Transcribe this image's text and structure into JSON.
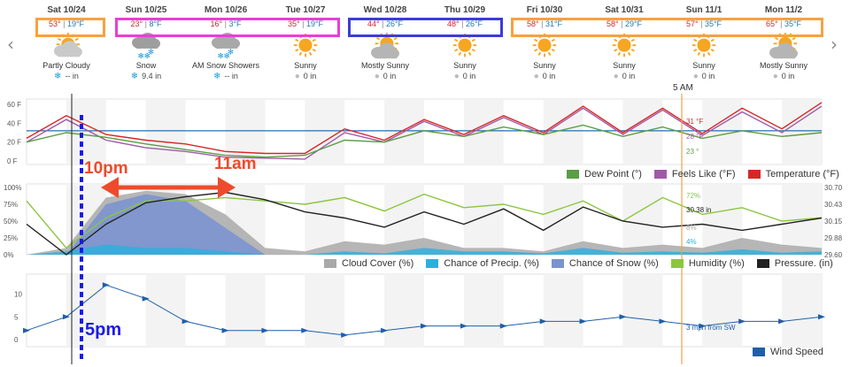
{
  "nav": {
    "prev_icon": "chevron-left-icon",
    "next_icon": "chevron-right-icon",
    "prev_glyph": "‹",
    "next_glyph": "›"
  },
  "days": [
    {
      "label": "Sat 10/24",
      "hi": "53°",
      "lo": "19°F",
      "icon": "partly-cloudy-icon",
      "condition": "Partly Cloudy",
      "precip_icon": "snow",
      "precip": "-- in"
    },
    {
      "label": "Sun 10/25",
      "hi": "23°",
      "lo": "8°F",
      "icon": "snow-icon",
      "condition": "Snow",
      "precip_icon": "snow",
      "precip": "9.4 in"
    },
    {
      "label": "Mon 10/26",
      "hi": "16°",
      "lo": "3°F",
      "icon": "snow-showers-icon",
      "condition": "AM Snow Showers",
      "precip_icon": "snow",
      "precip": "-- in"
    },
    {
      "label": "Tue 10/27",
      "hi": "35°",
      "lo": "19°F",
      "icon": "sunny-icon",
      "condition": "Sunny",
      "precip_icon": "rain",
      "precip": "0 in"
    },
    {
      "label": "Wed 10/28",
      "hi": "44°",
      "lo": "26°F",
      "icon": "mostly-sunny-icon",
      "condition": "Mostly Sunny",
      "precip_icon": "rain",
      "precip": "0 in"
    },
    {
      "label": "Thu 10/29",
      "hi": "48°",
      "lo": "26°F",
      "icon": "sunny-icon",
      "condition": "Sunny",
      "precip_icon": "rain",
      "precip": "0 in"
    },
    {
      "label": "Fri 10/30",
      "hi": "58°",
      "lo": "31°F",
      "icon": "sunny-icon",
      "condition": "Sunny",
      "precip_icon": "rain",
      "precip": "0 in"
    },
    {
      "label": "Sat 10/31",
      "hi": "58°",
      "lo": "29°F",
      "icon": "sunny-icon",
      "condition": "Sunny",
      "precip_icon": "rain",
      "precip": "0 in"
    },
    {
      "label": "Sun 11/1",
      "hi": "57°",
      "lo": "35°F",
      "icon": "sunny-icon",
      "condition": "Sunny",
      "precip_icon": "rain",
      "precip": "0 in"
    },
    {
      "label": "Mon 11/2",
      "hi": "65°",
      "lo": "35°F",
      "icon": "mostly-sunny-icon",
      "condition": "Mostly Sunny",
      "precip_icon": "rain",
      "precip": "0 in"
    }
  ],
  "cursor_label": "5 AM",
  "annotations": {
    "t1": "10pm",
    "t2": "11am",
    "t3": "5pm",
    "t1_color": "#ee4b2b",
    "t2_color": "#ee4b2b",
    "t3_color": "#1a1ae6"
  },
  "colors": {
    "temperature": "#d62728",
    "feels_like": "#a05aa5",
    "dew_point": "#5a9e45",
    "cloud": "#a9a9a9",
    "precip": "#2ab0e0",
    "snow": "#7b93cf",
    "humidity": "#8cc63f",
    "pressure": "#222222",
    "wind": "#1f5fa8",
    "freezing": "#1f6fb5",
    "cursor": "#f2a04b"
  },
  "chart_data": [
    {
      "type": "line",
      "y_ticks": [
        "60 F",
        "40 F",
        "20 F",
        "0 F"
      ],
      "ylim": [
        0,
        60
      ],
      "freezing_line": 32,
      "x_hours": [
        0,
        12,
        24,
        36,
        48,
        60,
        72,
        84,
        96,
        108,
        120,
        132,
        144,
        156,
        168,
        180,
        192,
        204,
        216,
        228,
        240
      ],
      "series": [
        {
          "name": "Temperature (°F)",
          "values": [
            24,
            48,
            28,
            22,
            18,
            10,
            8,
            8,
            34,
            22,
            44,
            28,
            48,
            30,
            58,
            30,
            56,
            29,
            56,
            34,
            62
          ]
        },
        {
          "name": "Feels Like (°F)",
          "values": [
            20,
            44,
            22,
            14,
            10,
            4,
            3,
            2,
            30,
            20,
            42,
            26,
            46,
            28,
            56,
            28,
            54,
            27,
            52,
            30,
            58
          ]
        },
        {
          "name": "Dew Point (°)",
          "values": [
            20,
            30,
            25,
            18,
            12,
            6,
            4,
            6,
            22,
            20,
            32,
            26,
            36,
            28,
            38,
            26,
            36,
            24,
            32,
            26,
            30
          ]
        }
      ],
      "end_labels": [
        "31 °F",
        "28 °F",
        "23 °"
      ],
      "legend": [
        "Dew Point (°)",
        "Feels Like (°F)",
        "Temperature (°F)"
      ]
    },
    {
      "type": "area",
      "y_ticks_left": [
        "100%",
        "75%",
        "50%",
        "25%",
        "0%"
      ],
      "y_ticks_right": [
        "30.70",
        "30.43",
        "30.15",
        "29.88",
        "29.60"
      ],
      "ylim": [
        0,
        100
      ],
      "pressure_lim": [
        29.6,
        30.7
      ],
      "x_hours": [
        0,
        12,
        24,
        36,
        48,
        60,
        72,
        84,
        96,
        108,
        120,
        132,
        144,
        156,
        168,
        180,
        192,
        204,
        216,
        228,
        240
      ],
      "series": [
        {
          "name": "Cloud Cover (%)",
          "values": [
            0,
            10,
            85,
            95,
            90,
            60,
            10,
            5,
            20,
            15,
            25,
            10,
            10,
            5,
            20,
            10,
            15,
            10,
            25,
            15,
            10
          ]
        },
        {
          "name": "Chance of Precip. (%)",
          "values": [
            0,
            5,
            15,
            10,
            10,
            5,
            0,
            0,
            5,
            2,
            10,
            5,
            5,
            2,
            10,
            3,
            5,
            3,
            8,
            3,
            5
          ]
        },
        {
          "name": "Chance of Snow (%)",
          "values": [
            0,
            0,
            75,
            90,
            80,
            40,
            0,
            0,
            0,
            0,
            0,
            0,
            0,
            0,
            0,
            0,
            0,
            0,
            0,
            0,
            0
          ]
        },
        {
          "name": "Humidity (%)",
          "values": [
            80,
            10,
            55,
            80,
            80,
            85,
            80,
            75,
            85,
            65,
            90,
            70,
            75,
            60,
            80,
            50,
            85,
            60,
            70,
            50,
            55
          ]
        },
        {
          "name": "Pressure. (in)",
          "values": [
            30.1,
            29.6,
            30.1,
            30.45,
            30.55,
            30.62,
            30.5,
            30.3,
            30.2,
            30.05,
            30.3,
            30.1,
            30.35,
            30.0,
            30.38,
            30.15,
            30.05,
            30.1,
            30.0,
            30.1,
            30.2
          ]
        }
      ],
      "end_labels": [
        "72%",
        "30.38 in",
        "8%",
        "4%"
      ],
      "legend": [
        "Cloud Cover (%)",
        "Chance of Precip. (%)",
        "Chance of Snow (%)",
        "Humidity (%)",
        "Pressure. (in)"
      ]
    },
    {
      "type": "line",
      "y_ticks": [
        "10",
        "5",
        "0"
      ],
      "ylim": [
        0,
        14
      ],
      "x_hours": [
        0,
        12,
        24,
        36,
        48,
        60,
        72,
        84,
        96,
        108,
        120,
        132,
        144,
        156,
        168,
        180,
        192,
        204,
        216,
        228,
        240
      ],
      "series": [
        {
          "name": "Wind Speed",
          "values": [
            2,
            5,
            12,
            9,
            4,
            2,
            2,
            2,
            1,
            2,
            3,
            3,
            3,
            4,
            4,
            5,
            4,
            3,
            4,
            4,
            5
          ]
        }
      ],
      "end_labels": [
        "3 mph from SW"
      ],
      "legend": [
        "Wind Speed"
      ]
    }
  ]
}
